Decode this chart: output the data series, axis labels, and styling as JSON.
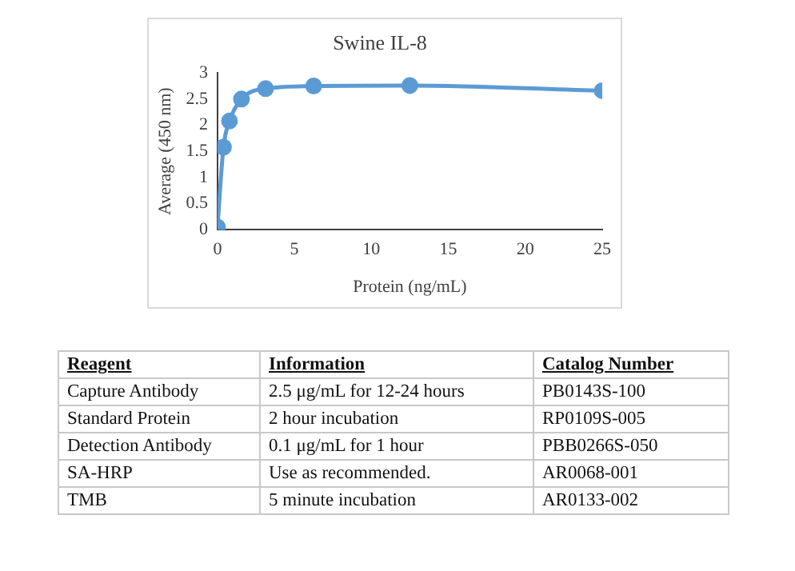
{
  "chart_data": [
    {
      "type": "line",
      "title": "Swine IL-8",
      "xlabel": "Protein (ng/mL)",
      "ylabel": "Average (450 nm)",
      "x": [
        0,
        0.39,
        0.78,
        1.56,
        3.125,
        6.25,
        12.5,
        25
      ],
      "series": [
        {
          "color": "#5b9bd5",
          "values": [
            0.05,
            1.58,
            2.08,
            2.5,
            2.7,
            2.75,
            2.76,
            2.66
          ]
        }
      ],
      "xlim": [
        0,
        25
      ],
      "xticks": [
        0,
        5,
        10,
        15,
        20,
        25
      ],
      "ylim": [
        0,
        3
      ],
      "yticks": [
        0,
        0.5,
        1,
        1.5,
        2,
        2.5,
        3
      ],
      "grid": false,
      "legend": false,
      "marker": "circle",
      "line_style": "solid"
    },
    {
      "type": "other",
      "categories": [
        "Reagent",
        "Information",
        "Catalog Number"
      ],
      "annotations": [
        "Capture Antibody",
        "2.5 μg/mL for 12-24 hours",
        "PB0143S-100",
        "Standard Protein",
        "2 hour incubation",
        "RP0109S-005",
        "Detection Antibody",
        "0.1 μg/mL for 1 hour",
        "PBB0266S-050",
        "SA-HRP",
        "Use as recommended.",
        "AR0068-001",
        "TMB",
        "5 minute incubation",
        "AR0133-002"
      ]
    }
  ]
}
